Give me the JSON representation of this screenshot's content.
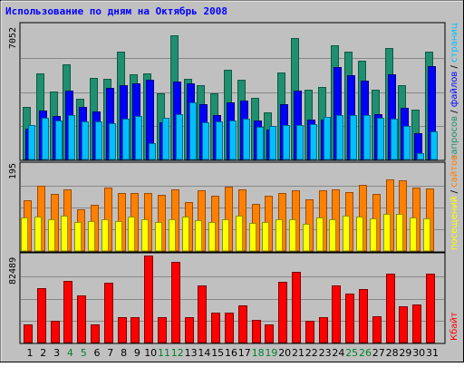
{
  "title": "Использование по дням на Октябрь 2008",
  "colors": {
    "frame": "#c0c0c0",
    "border": "#888888",
    "grid": "#888888",
    "title": "#0000ff",
    "requests": "#1f8f6f",
    "files": "#0000ff",
    "pages": "#00c0ff",
    "visits": "#ff8000",
    "sites": "#ffff00",
    "kbytes": "#ff0000",
    "tick_weekday": "#000000",
    "tick_weekend": "#00802f"
  },
  "legend_top": [
    {
      "text": "запросов",
      "color": "#1f8f6f"
    },
    {
      "text": " / ",
      "color": "#000000"
    },
    {
      "text": "файлов",
      "color": "#0000ff"
    },
    {
      "text": " / ",
      "color": "#000000"
    },
    {
      "text": "страниц",
      "color": "#00c0ff"
    }
  ],
  "legend_mid": [
    {
      "text": "посещений",
      "color": "#ffff00"
    },
    {
      "text": " / ",
      "color": "#000000"
    },
    {
      "text": "сайтов",
      "color": "#ff8000"
    }
  ],
  "legend_bot": [
    {
      "text": "Кбайт",
      "color": "#ff0000"
    }
  ],
  "chart_data": {
    "type": "bar",
    "title": "Использование по дням на Октябрь 2008",
    "categories": [
      "1",
      "2",
      "3",
      "4",
      "5",
      "6",
      "7",
      "8",
      "9",
      "10",
      "11",
      "12",
      "13",
      "14",
      "15",
      "16",
      "17",
      "18",
      "19",
      "20",
      "21",
      "22",
      "23",
      "24",
      "25",
      "26",
      "27",
      "28",
      "29",
      "30",
      "31"
    ],
    "weekend_days": [
      4,
      5,
      11,
      12,
      18,
      19,
      25,
      26
    ],
    "panels": [
      {
        "id": "requests_files_pages",
        "ymax": 7052,
        "ymax_label": "7052",
        "series": [
          {
            "name": "запросов",
            "values": [
              2750,
              4480,
              3560,
              4960,
              3170,
              4260,
              4210,
              5610,
              4440,
              4490,
              3440,
              6470,
              4230,
              3860,
              3460,
              4680,
              4170,
              3200,
              2450,
              4530,
              6350,
              3650,
              3800,
              5940,
              5610,
              5160,
              3630,
              5820,
              3870,
              2620,
              5640
            ]
          },
          {
            "name": "файлов",
            "values": [
              1600,
              2560,
              2260,
              3600,
              2730,
              2530,
              3740,
              3880,
              3960,
              4170,
              1920,
              4090,
              3980,
              2900,
              2340,
              3000,
              3060,
              2040,
              1570,
              2900,
              3600,
              2070,
              2070,
              4820,
              4390,
              4130,
              2380,
              4470,
              2710,
              1370,
              4890
            ]
          },
          {
            "name": "страниц",
            "values": [
              1820,
              2190,
              2040,
              2300,
              2010,
              1990,
              1910,
              2140,
              2290,
              860,
              2170,
              2360,
              2990,
              1920,
              1980,
              2050,
              2130,
              1720,
              1740,
              1810,
              1790,
              1840,
              2220,
              2300,
              2330,
              2330,
              2190,
              2140,
              1750,
              350,
              1490
            ]
          }
        ]
      },
      {
        "id": "visits_sites",
        "ymax": 195,
        "ymax_label": "195",
        "series": [
          {
            "name": "сайтов",
            "values": [
              113,
              146,
              128,
              139,
              93,
              104,
              143,
              130,
              129,
              129,
              125,
              139,
              109,
              137,
              124,
              144,
              139,
              105,
              124,
              131,
              137,
              115,
              136,
              139,
              133,
              148,
              127,
              160,
              158,
              143,
              141
            ]
          },
          {
            "name": "посещений",
            "values": [
              76,
              78,
              72,
              80,
              65,
              67,
              71,
              68,
              78,
              72,
              65,
              71,
              77,
              69,
              64,
              72,
              80,
              62,
              66,
              72,
              72,
              61,
              76,
              72,
              79,
              78,
              74,
              84,
              84,
              75,
              73
            ]
          }
        ]
      },
      {
        "id": "kbytes",
        "ymax": 82489,
        "ymax_label": "82489",
        "series": [
          {
            "name": "Кбайт",
            "values": [
              17000,
              51000,
              20000,
              58000,
              44000,
              17000,
              56000,
              24000,
              24000,
              82000,
              24000,
              76000,
              24000,
              54000,
              28000,
              28000,
              35000,
              21000,
              17000,
              57000,
              66000,
              20000,
              24000,
              54000,
              46000,
              50000,
              25000,
              65000,
              34000,
              36000,
              65000
            ]
          }
        ]
      }
    ]
  }
}
